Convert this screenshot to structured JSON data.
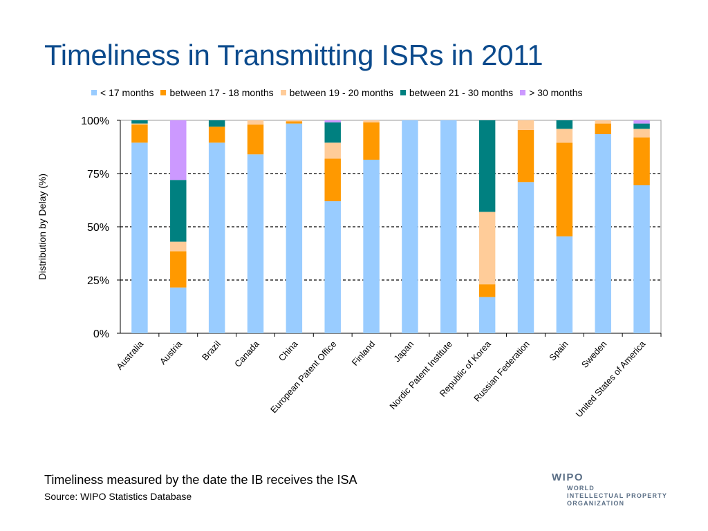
{
  "title": "Timeliness in Transmitting ISRs in 2011",
  "footer": {
    "note": "Timeliness measured by the date the IB receives the ISA",
    "source": "Source: WIPO Statistics Database"
  },
  "logo": {
    "wordmark": "WIPO",
    "lines": [
      "WORLD",
      "INTELLECTUAL PROPERTY",
      "ORGANIZATION"
    ]
  },
  "chart_data": {
    "type": "bar",
    "stacked": true,
    "ylabel": "Distribution by Delay (%)",
    "xlabel": "",
    "ylim": [
      0,
      100
    ],
    "y_ticks": [
      "0%",
      "25%",
      "50%",
      "75%",
      "100%"
    ],
    "grid": "dashed horizontal at 25%, 50%, 75%",
    "legend_position": "top",
    "categories": [
      "Australia",
      "Austria",
      "Brazil",
      "Canada",
      "China",
      "European Patent Office",
      "Finland",
      "Japan",
      "Nordic Patent Institute",
      "Republic of Korea",
      "Russian Federation",
      "Spain",
      "Sweden",
      "United States of America"
    ],
    "series": [
      {
        "name": "< 17 months",
        "color": "#99ccff",
        "values": [
          89.5,
          21.5,
          89.5,
          84,
          98.5,
          62,
          81.5,
          100,
          100,
          17,
          71,
          45.5,
          93.5,
          69.5
        ]
      },
      {
        "name": "between 17 - 18 months",
        "color": "#ff9900",
        "values": [
          8.5,
          17,
          7.5,
          14,
          1,
          20,
          17.5,
          0,
          0,
          6,
          24.5,
          44,
          5,
          22.5
        ]
      },
      {
        "name": "between 19 - 20 months",
        "color": "#ffcc99",
        "values": [
          0.5,
          4.5,
          0,
          2,
          0.5,
          7.5,
          1,
          0,
          0,
          34,
          4.5,
          6.5,
          1.5,
          4
        ]
      },
      {
        "name": "between 21 - 30 months",
        "color": "#008080",
        "values": [
          1.5,
          29,
          3,
          0,
          0,
          9.5,
          0,
          0,
          0,
          43,
          0,
          4,
          0,
          2.5
        ]
      },
      {
        "name": "> 30 months",
        "color": "#cc99ff",
        "values": [
          0,
          28,
          0,
          0,
          0,
          1,
          0,
          0,
          0,
          0,
          0,
          0,
          0,
          1.5
        ]
      }
    ]
  }
}
